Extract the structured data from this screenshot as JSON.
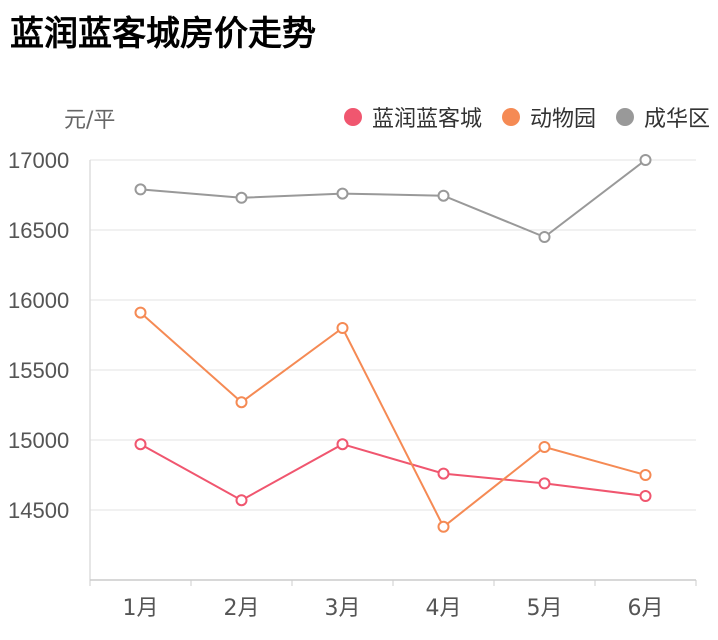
{
  "chart_data": {
    "type": "line",
    "title": "蓝润蓝客城房价走势",
    "ylabel": "元/平",
    "categories": [
      "1月",
      "2月",
      "3月",
      "4月",
      "5月",
      "6月"
    ],
    "yticks": [
      "17000",
      "16500",
      "16000",
      "15500",
      "15000",
      "14500"
    ],
    "ylim": [
      14000,
      17000
    ],
    "legend_position": "top-right",
    "grid": true,
    "series": [
      {
        "name": "蓝润蓝客城",
        "color": "#f0566f",
        "values": [
          14970,
          14570,
          14970,
          14760,
          14690,
          14600
        ]
      },
      {
        "name": "动物园",
        "color": "#f58a54",
        "values": [
          15910,
          15270,
          15800,
          14380,
          14950,
          14750
        ]
      },
      {
        "name": "成华区",
        "color": "#999999",
        "values": [
          16790,
          16730,
          16760,
          16745,
          16450,
          17000
        ]
      }
    ]
  }
}
